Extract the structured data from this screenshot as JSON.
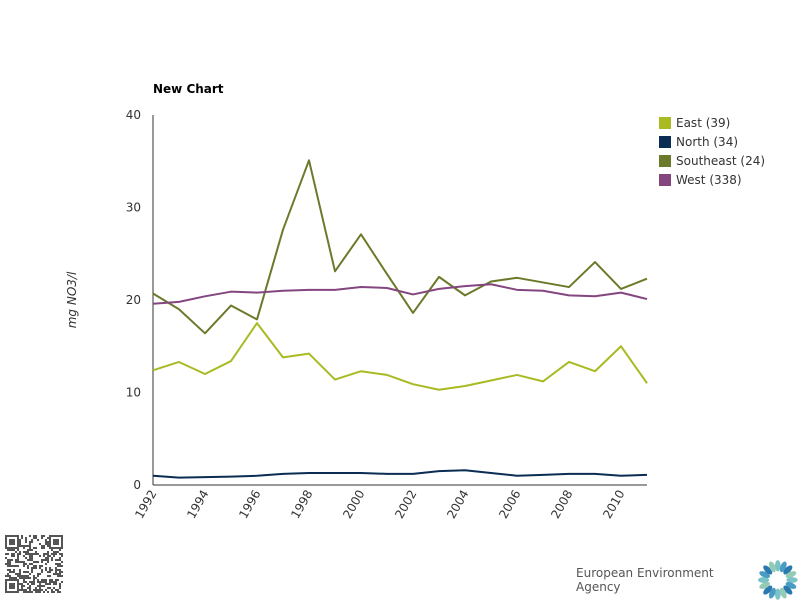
{
  "chart_data": {
    "type": "line",
    "title": "New Chart",
    "xlabel": "",
    "ylabel": "mg NO3/l",
    "x": [
      1992,
      1993,
      1994,
      1995,
      1996,
      1997,
      1998,
      1999,
      2000,
      2001,
      2002,
      2003,
      2004,
      2005,
      2006,
      2007,
      2008,
      2009,
      2010,
      2011
    ],
    "xticks": [
      "1992",
      "1994",
      "1996",
      "1998",
      "2000",
      "2002",
      "2004",
      "2006",
      "2008",
      "2010"
    ],
    "yticks": [
      "0",
      "10",
      "20",
      "30",
      "40"
    ],
    "ylim": [
      0,
      40
    ],
    "legend_position": "top-right",
    "series": [
      {
        "name": "East (39)",
        "color": "#a9ba23",
        "values": [
          12.4,
          13.3,
          12.0,
          13.4,
          17.5,
          13.8,
          14.2,
          11.4,
          12.3,
          11.9,
          10.9,
          10.3,
          10.7,
          11.3,
          11.9,
          11.2,
          13.3,
          12.3,
          15.0,
          11.0
        ]
      },
      {
        "name": "North (34)",
        "color": "#0b2d54",
        "values": [
          1.0,
          0.8,
          0.85,
          0.9,
          1.0,
          1.2,
          1.3,
          1.3,
          1.3,
          1.2,
          1.2,
          1.5,
          1.6,
          1.3,
          1.0,
          1.1,
          1.2,
          1.2,
          1.0,
          1.1
        ]
      },
      {
        "name": "Southeast (24)",
        "color": "#6b7a2a",
        "values": [
          20.7,
          19.0,
          16.4,
          19.4,
          17.9,
          27.6,
          35.1,
          23.1,
          27.1,
          22.8,
          18.6,
          22.5,
          20.5,
          22.0,
          22.4,
          21.9,
          21.4,
          24.1,
          21.2,
          22.3
        ]
      },
      {
        "name": "West (338)",
        "color": "#83467f",
        "values": [
          19.6,
          19.8,
          20.4,
          20.9,
          20.8,
          21.0,
          21.1,
          21.1,
          21.4,
          21.3,
          20.6,
          21.2,
          21.5,
          21.7,
          21.1,
          21.0,
          20.5,
          20.4,
          20.8,
          20.1
        ]
      }
    ]
  },
  "footer": {
    "agency": "European Environment Agency"
  }
}
